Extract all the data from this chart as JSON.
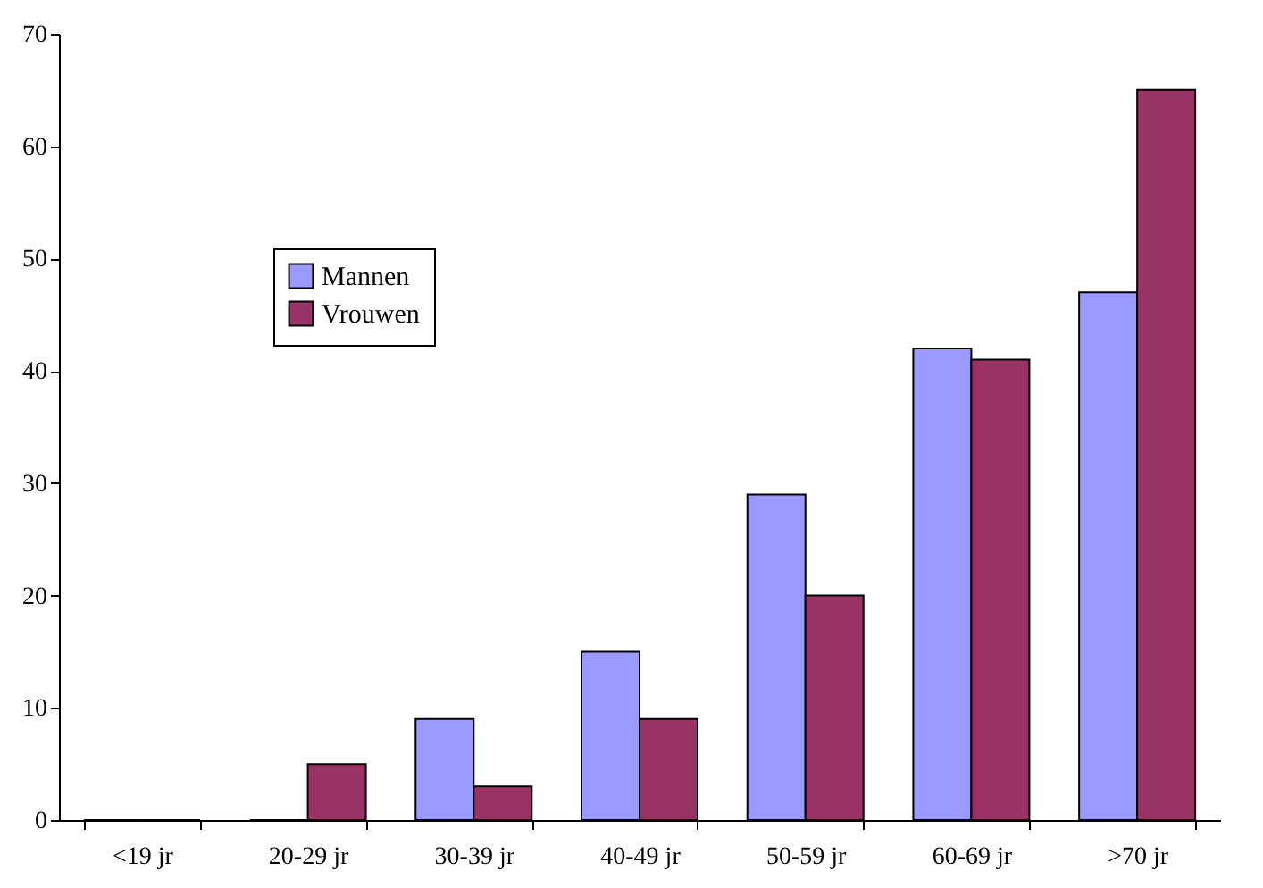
{
  "chart_data": {
    "type": "bar",
    "categories": [
      "<19 jr",
      "20-29 jr",
      "30-39 jr",
      "40-49 jr",
      "50-59 jr",
      "60-69 jr",
      ">70 jr"
    ],
    "series": [
      {
        "name": "Mannen",
        "color": "#9999ff",
        "values": [
          0,
          0,
          9,
          15,
          29,
          42,
          47
        ]
      },
      {
        "name": "Vrouwen",
        "color": "#993366",
        "values": [
          0,
          5,
          3,
          9,
          20,
          41,
          65
        ]
      }
    ],
    "ylim": [
      0,
      70
    ],
    "yticks": [
      0,
      10,
      20,
      30,
      40,
      50,
      60,
      70
    ],
    "grid": false,
    "legend": "top left"
  }
}
